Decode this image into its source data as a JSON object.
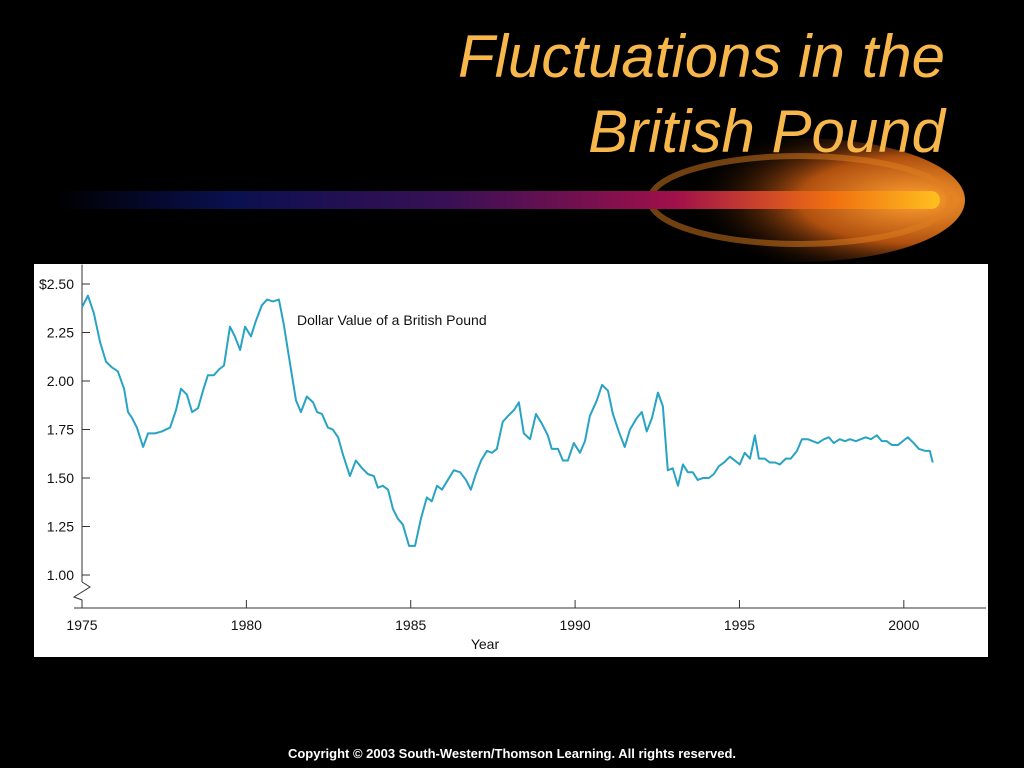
{
  "title": [
    "Fluctuations in the",
    "British Pound"
  ],
  "footer": "Copyright © 2003 South-Western/Thomson Learning. All rights reserved.",
  "chart_data": {
    "type": "line",
    "annotation": "Dollar Value of a British Pound",
    "xlabel": "Year",
    "color": "#29a3c4",
    "xlim": [
      1975,
      2002.5
    ],
    "ylim": [
      0.83,
      2.6
    ],
    "xticks": [
      1975,
      1980,
      1985,
      1990,
      1995,
      2000
    ],
    "yticks": [
      {
        "value": 2.5,
        "label": "$2.50"
      },
      {
        "value": 2.25,
        "label": "2.25"
      },
      {
        "value": 2.0,
        "label": "2.00"
      },
      {
        "value": 1.75,
        "label": "1.75"
      },
      {
        "value": 1.5,
        "label": "1.50"
      },
      {
        "value": 1.25,
        "label": "1.25"
      },
      {
        "value": 1.0,
        "label": "1.00"
      }
    ],
    "x": [
      1975.0,
      1975.18,
      1975.36,
      1975.55,
      1975.73,
      1975.91,
      1976.09,
      1976.28,
      1976.4,
      1976.52,
      1976.67,
      1976.86,
      1977.01,
      1977.22,
      1977.43,
      1977.68,
      1977.86,
      1978.01,
      1978.19,
      1978.35,
      1978.53,
      1978.68,
      1978.83,
      1979.01,
      1979.17,
      1979.32,
      1979.5,
      1979.65,
      1979.81,
      1979.96,
      1980.14,
      1980.29,
      1980.47,
      1980.63,
      1980.81,
      1980.99,
      1981.14,
      1981.29,
      1981.51,
      1981.66,
      1981.84,
      1982.03,
      1982.15,
      1982.3,
      1982.48,
      1982.63,
      1982.79,
      1982.94,
      1983.15,
      1983.33,
      1983.52,
      1983.7,
      1983.88,
      1984.0,
      1984.15,
      1984.31,
      1984.46,
      1984.61,
      1984.76,
      1984.95,
      1985.13,
      1985.31,
      1985.49,
      1985.64,
      1985.8,
      1985.95,
      1986.13,
      1986.31,
      1986.5,
      1986.68,
      1986.83,
      1986.98,
      1987.14,
      1987.32,
      1987.47,
      1987.62,
      1987.8,
      1987.96,
      1988.14,
      1988.29,
      1988.44,
      1988.63,
      1988.81,
      1988.99,
      1989.17,
      1989.29,
      1989.48,
      1989.63,
      1989.78,
      1989.96,
      1990.15,
      1990.3,
      1990.45,
      1990.66,
      1990.82,
      1991.0,
      1991.15,
      1991.33,
      1991.51,
      1991.67,
      1991.88,
      1992.03,
      1992.18,
      1992.34,
      1992.52,
      1992.67,
      1992.82,
      1992.97,
      1993.13,
      1993.28,
      1993.43,
      1993.58,
      1993.73,
      1993.89,
      1994.07,
      1994.22,
      1994.37,
      1994.53,
      1994.71,
      1994.86,
      1995.01,
      1995.16,
      1995.32,
      1995.47,
      1995.59,
      1995.77,
      1995.92,
      1996.08,
      1996.23,
      1996.41,
      1996.56,
      1996.75,
      1996.9,
      1997.08,
      1997.23,
      1997.38,
      1997.57,
      1997.72,
      1997.87,
      1998.05,
      1998.21,
      1998.36,
      1998.54,
      1998.69,
      1998.84,
      1999.0,
      1999.18,
      1999.33,
      1999.48,
      1999.64,
      1999.82,
      1999.97,
      2000.12,
      2000.3,
      2000.46,
      2000.64,
      2000.79,
      2000.88
    ],
    "values": [
      2.38,
      2.44,
      2.35,
      2.2,
      2.1,
      2.07,
      2.05,
      1.96,
      1.84,
      1.81,
      1.76,
      1.66,
      1.73,
      1.73,
      1.74,
      1.76,
      1.85,
      1.96,
      1.93,
      1.84,
      1.86,
      1.95,
      2.03,
      2.03,
      2.06,
      2.08,
      2.28,
      2.23,
      2.16,
      2.28,
      2.23,
      2.31,
      2.39,
      2.42,
      2.41,
      2.42,
      2.29,
      2.13,
      1.9,
      1.84,
      1.92,
      1.89,
      1.84,
      1.83,
      1.76,
      1.75,
      1.71,
      1.62,
      1.51,
      1.59,
      1.55,
      1.52,
      1.51,
      1.45,
      1.46,
      1.44,
      1.34,
      1.29,
      1.26,
      1.15,
      1.15,
      1.29,
      1.4,
      1.38,
      1.46,
      1.44,
      1.49,
      1.54,
      1.53,
      1.49,
      1.44,
      1.52,
      1.59,
      1.64,
      1.63,
      1.65,
      1.79,
      1.82,
      1.85,
      1.89,
      1.73,
      1.7,
      1.83,
      1.78,
      1.72,
      1.65,
      1.65,
      1.59,
      1.59,
      1.68,
      1.63,
      1.69,
      1.82,
      1.9,
      1.98,
      1.95,
      1.83,
      1.74,
      1.66,
      1.75,
      1.81,
      1.84,
      1.74,
      1.81,
      1.94,
      1.87,
      1.54,
      1.55,
      1.46,
      1.57,
      1.53,
      1.53,
      1.49,
      1.5,
      1.5,
      1.52,
      1.56,
      1.58,
      1.61,
      1.59,
      1.57,
      1.63,
      1.6,
      1.72,
      1.6,
      1.6,
      1.58,
      1.58,
      1.57,
      1.6,
      1.6,
      1.64,
      1.7,
      1.7,
      1.69,
      1.68,
      1.7,
      1.71,
      1.68,
      1.7,
      1.69,
      1.7,
      1.69,
      1.7,
      1.71,
      1.7,
      1.72,
      1.69,
      1.69,
      1.67,
      1.67,
      1.69,
      1.71,
      1.68,
      1.65,
      1.64,
      1.64,
      1.58
    ]
  }
}
